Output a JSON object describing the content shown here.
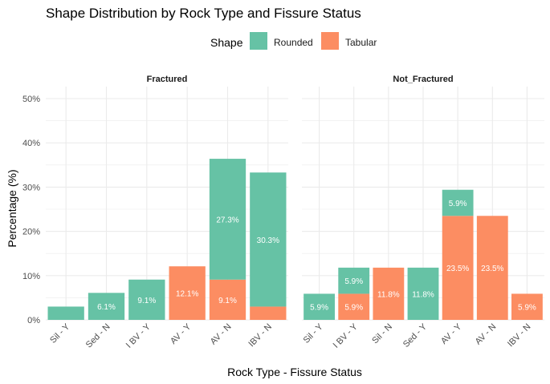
{
  "chart_data": {
    "type": "bar",
    "stacked": true,
    "title": "Shape Distribution by Rock Type and Fissure Status",
    "xlabel": "Rock Type - Fissure Status",
    "ylabel": "Percentage (%)",
    "ylim": [
      0,
      50
    ],
    "yticks": [
      "0%",
      "10%",
      "20%",
      "30%",
      "40%",
      "50%"
    ],
    "legend": {
      "title": "Shape",
      "position": "top",
      "items": [
        {
          "name": "Rounded",
          "color": "#66c2a5"
        },
        {
          "name": "Tabular",
          "color": "#fc8d62"
        }
      ]
    },
    "panels": [
      {
        "title": "Fractured",
        "categories": [
          "Sil - Y",
          "Sed - N",
          "I BV - Y",
          "AV - Y",
          "AV - N",
          "IBV - N"
        ],
        "series": [
          {
            "name": "Tabular",
            "values": [
              0,
              0,
              0,
              12.1,
              9.1,
              3.0
            ],
            "labels": [
              "",
              "",
              "",
              "12.1%",
              "9.1%",
              ""
            ]
          },
          {
            "name": "Rounded",
            "values": [
              3.0,
              6.1,
              9.1,
              0,
              27.3,
              30.3
            ],
            "labels": [
              "",
              "6.1%",
              "9.1%",
              "",
              "27.3%",
              "30.3%"
            ]
          }
        ]
      },
      {
        "title": "Not_Fractured",
        "categories": [
          "Sil - Y",
          "I BV - Y",
          "Sil - N",
          "Sed - Y",
          "AV - Y",
          "AV - N",
          "IBV - N"
        ],
        "series": [
          {
            "name": "Tabular",
            "values": [
              0,
              5.9,
              11.8,
              0,
              23.5,
              23.5,
              5.9
            ],
            "labels": [
              "",
              "5.9%",
              "11.8%",
              "",
              "23.5%",
              "23.5%",
              "5.9%"
            ]
          },
          {
            "name": "Rounded",
            "values": [
              5.9,
              5.9,
              0,
              11.8,
              5.9,
              0,
              0
            ],
            "labels": [
              "5.9%",
              "5.9%",
              "",
              "11.8%",
              "5.9%",
              "",
              ""
            ]
          }
        ]
      }
    ]
  }
}
